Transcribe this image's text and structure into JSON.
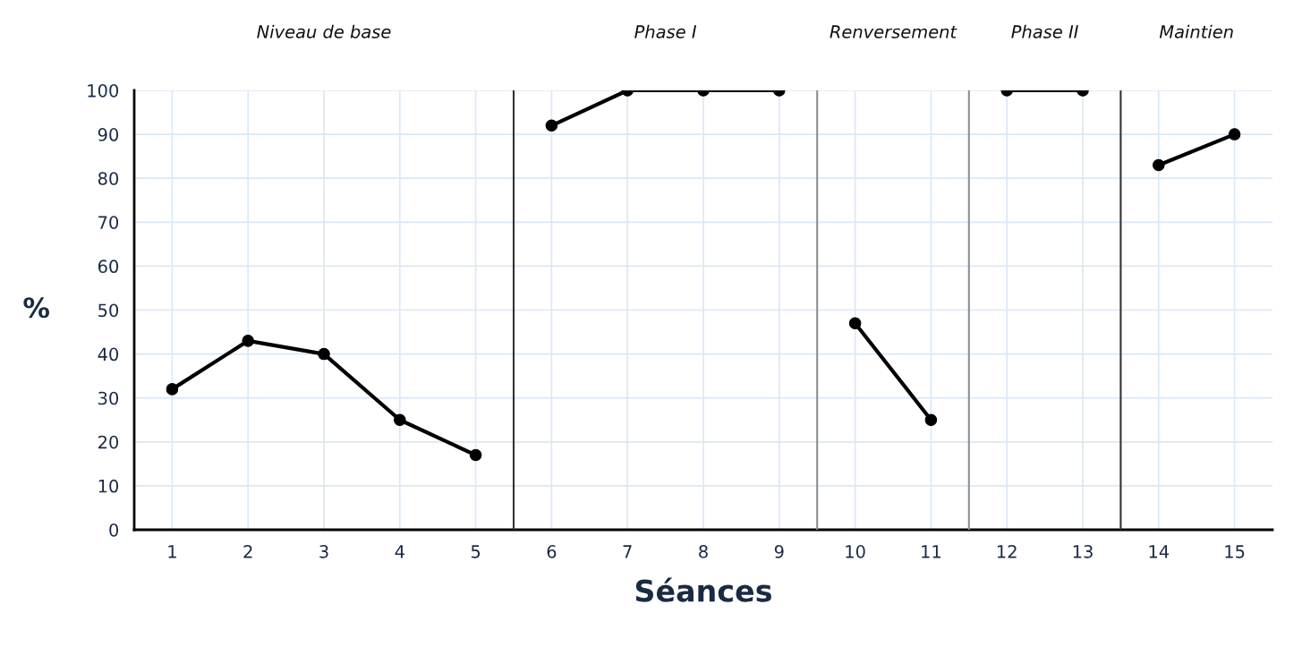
{
  "chart_data": {
    "type": "line",
    "xlabel": "Séances",
    "ylabel": "%",
    "xlim": [
      0.5,
      15.5
    ],
    "xticks": [
      1,
      2,
      3,
      4,
      5,
      6,
      7,
      8,
      9,
      10,
      11,
      12,
      13,
      14,
      15
    ],
    "ylim": [
      0,
      100
    ],
    "yticks": [
      0,
      10,
      20,
      30,
      40,
      50,
      60,
      70,
      80,
      90,
      100
    ],
    "grid": true,
    "marker": "circle",
    "line_style": "solid",
    "series": [
      {
        "color": "#000000",
        "x": [
          1,
          2,
          3,
          4,
          5
        ],
        "values": [
          32,
          43,
          40,
          25,
          17
        ]
      },
      {
        "color": "#000000",
        "x": [
          6,
          7,
          8,
          9
        ],
        "values": [
          92,
          100,
          100,
          100
        ]
      },
      {
        "color": "#000000",
        "x": [
          10,
          11
        ],
        "values": [
          47,
          25
        ]
      },
      {
        "color": "#000000",
        "x": [
          12,
          13
        ],
        "values": [
          100,
          100
        ]
      },
      {
        "color": "#000000",
        "x": [
          14,
          15
        ],
        "values": [
          83,
          90
        ]
      }
    ],
    "ref_lines": [
      {
        "axis": "x",
        "value": 5.5,
        "color": "#333333"
      },
      {
        "axis": "x",
        "value": 9.5,
        "color": "#8a8f96"
      },
      {
        "axis": "x",
        "value": 11.5,
        "color": "#8a8f96"
      },
      {
        "axis": "x",
        "value": 13.5,
        "color": "#333333"
      }
    ],
    "annotations": [
      "Niveau de base",
      "Phase I",
      "Renversement",
      "Phase II",
      "Maintien"
    ]
  }
}
